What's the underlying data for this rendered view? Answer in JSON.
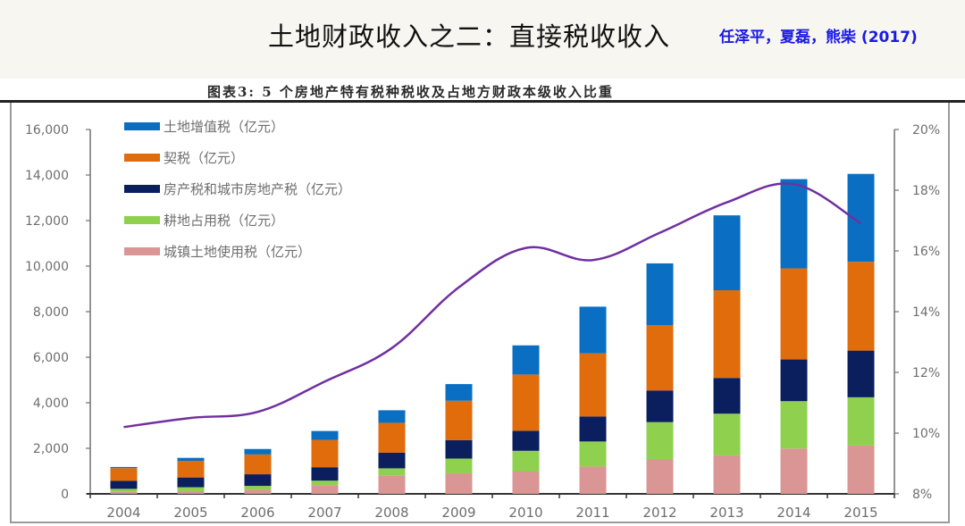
{
  "header": {
    "title": "土地财政收入之二：直接税收收入",
    "source": "任泽平，夏磊，熊柴 (2017)"
  },
  "figure": {
    "caption": "图表3:   5 个房地产特有税种税收及占地方财政本级收入比重"
  },
  "colors": {
    "land_vat": "#0a6fc2",
    "deed_tax": "#e06c0c",
    "property_tax": "#0b1f5e",
    "farmland_tax": "#8fd14f",
    "urban_land_tax": "#d99694",
    "ratio_line": "#7030a0",
    "axis": "#707070"
  },
  "chart_data": {
    "type": "bar",
    "stacked": true,
    "title": "5 个房地产特有税种税收及占地方财政本级收入比重",
    "categories": [
      "2004",
      "2005",
      "2006",
      "2007",
      "2008",
      "2009",
      "2010",
      "2011",
      "2012",
      "2013",
      "2014",
      "2015"
    ],
    "series": [
      {
        "name": "城镇土地使用税（亿元）",
        "key": "urban_land_tax",
        "axis": "left",
        "values": [
          90,
          120,
          180,
          380,
          810,
          900,
          980,
          1200,
          1530,
          1690,
          1990,
          2120
        ]
      },
      {
        "name": "耕地占用税（亿元）",
        "key": "farmland_tax",
        "axis": "left",
        "values": [
          130,
          170,
          170,
          200,
          310,
          650,
          910,
          1100,
          1620,
          1830,
          2080,
          2120
        ]
      },
      {
        "name": "房产税和城市房地产税（亿元）",
        "key": "property_tax",
        "axis": "left",
        "values": [
          350,
          430,
          510,
          590,
          690,
          810,
          880,
          1100,
          1390,
          1570,
          1830,
          2050
        ]
      },
      {
        "name": "契税（亿元）",
        "key": "deed_tax",
        "axis": "left",
        "values": [
          560,
          730,
          870,
          1200,
          1310,
          1730,
          2470,
          2770,
          2870,
          3850,
          4000,
          3900
        ]
      },
      {
        "name": "土地增值税（亿元）",
        "key": "land_vat",
        "axis": "left",
        "values": [
          50,
          130,
          240,
          390,
          550,
          730,
          1280,
          2050,
          2710,
          3290,
          3920,
          3860
        ]
      }
    ],
    "line": {
      "name": "占地方财政本级收入比重",
      "key": "ratio_line",
      "axis": "right",
      "type": "line",
      "values": [
        10.2,
        10.5,
        10.7,
        11.7,
        12.8,
        14.8,
        16.1,
        15.7,
        16.6,
        17.6,
        18.2,
        16.9
      ]
    },
    "legend_order": [
      "land_vat",
      "deed_tax",
      "property_tax",
      "farmland_tax",
      "urban_land_tax"
    ],
    "legend_position": "top-left",
    "yaxis_left": {
      "min": 0,
      "max": 16000,
      "step": 2000,
      "tick_labels": [
        "0",
        "2,000",
        "4,000",
        "6,000",
        "8,000",
        "10,000",
        "12,000",
        "14,000",
        "16,000"
      ]
    },
    "yaxis_right": {
      "min": 8,
      "max": 20,
      "step": 2,
      "tick_labels": [
        "8%",
        "10%",
        "12%",
        "14%",
        "16%",
        "18%",
        "20%"
      ]
    },
    "xlabel": "",
    "ylabel": "",
    "grid": false
  }
}
